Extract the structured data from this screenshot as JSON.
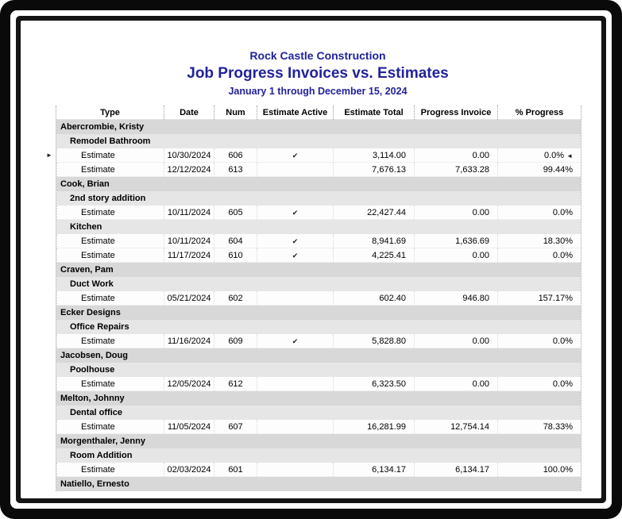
{
  "report": {
    "company": "Rock Castle Construction",
    "title": "Job Progress Invoices vs. Estimates",
    "subtitle": "January 1 through December 15, 2024",
    "columns": {
      "type": "Type",
      "date": "Date",
      "num": "Num",
      "active": "Estimate Active",
      "total": "Estimate Total",
      "invoice": "Progress Invoice",
      "progress": "% Progress"
    },
    "icons": {
      "check_mark": "✔",
      "selected_row_pointer": "►",
      "selection_end_pointer": "◄"
    },
    "colors": {
      "title_navy": "#22229c",
      "customer_row_bg": "#d8d8d8",
      "job_row_bg": "#e6e6e6"
    },
    "rows": [
      {
        "kind": "customer",
        "label": "Abercrombie, Kristy"
      },
      {
        "kind": "job",
        "label": "Remodel Bathroom"
      },
      {
        "kind": "estimate",
        "type": "Estimate",
        "date": "10/30/2024",
        "num": "606",
        "active": true,
        "total": "3,114.00",
        "invoice": "0.00",
        "progress": "0.0%",
        "selected": true
      },
      {
        "kind": "estimate",
        "type": "Estimate",
        "date": "12/12/2024",
        "num": "613",
        "active": false,
        "total": "7,676.13",
        "invoice": "7,633.28",
        "progress": "99.44%"
      },
      {
        "kind": "customer",
        "label": "Cook, Brian"
      },
      {
        "kind": "job",
        "label": "2nd story addition"
      },
      {
        "kind": "estimate",
        "type": "Estimate",
        "date": "10/11/2024",
        "num": "605",
        "active": true,
        "total": "22,427.44",
        "invoice": "0.00",
        "progress": "0.0%"
      },
      {
        "kind": "job",
        "label": "Kitchen"
      },
      {
        "kind": "estimate",
        "type": "Estimate",
        "date": "10/11/2024",
        "num": "604",
        "active": true,
        "total": "8,941.69",
        "invoice": "1,636.69",
        "progress": "18.30%"
      },
      {
        "kind": "estimate",
        "type": "Estimate",
        "date": "11/17/2024",
        "num": "610",
        "active": true,
        "total": "4,225.41",
        "invoice": "0.00",
        "progress": "0.0%"
      },
      {
        "kind": "customer",
        "label": "Craven, Pam"
      },
      {
        "kind": "job",
        "label": "Duct Work"
      },
      {
        "kind": "estimate",
        "type": "Estimate",
        "date": "05/21/2024",
        "num": "602",
        "active": false,
        "total": "602.40",
        "invoice": "946.80",
        "progress": "157.17%"
      },
      {
        "kind": "customer",
        "label": "Ecker Designs"
      },
      {
        "kind": "job",
        "label": "Office Repairs"
      },
      {
        "kind": "estimate",
        "type": "Estimate",
        "date": "11/16/2024",
        "num": "609",
        "active": true,
        "total": "5,828.80",
        "invoice": "0.00",
        "progress": "0.0%"
      },
      {
        "kind": "customer",
        "label": "Jacobsen, Doug"
      },
      {
        "kind": "job",
        "label": "Poolhouse"
      },
      {
        "kind": "estimate",
        "type": "Estimate",
        "date": "12/05/2024",
        "num": "612",
        "active": false,
        "total": "6,323.50",
        "invoice": "0.00",
        "progress": "0.0%"
      },
      {
        "kind": "customer",
        "label": "Melton, Johnny"
      },
      {
        "kind": "job",
        "label": "Dental office"
      },
      {
        "kind": "estimate",
        "type": "Estimate",
        "date": "11/05/2024",
        "num": "607",
        "active": false,
        "total": "16,281.99",
        "invoice": "12,754.14",
        "progress": "78.33%"
      },
      {
        "kind": "customer",
        "label": "Morgenthaler, Jenny"
      },
      {
        "kind": "job",
        "label": "Room Addition"
      },
      {
        "kind": "estimate",
        "type": "Estimate",
        "date": "02/03/2024",
        "num": "601",
        "active": false,
        "total": "6,134.17",
        "invoice": "6,134.17",
        "progress": "100.0%"
      },
      {
        "kind": "customer",
        "label": "Natiello, Ernesto"
      }
    ]
  }
}
